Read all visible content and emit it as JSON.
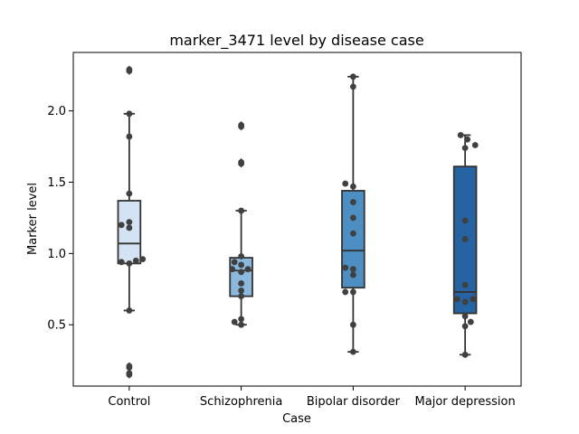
{
  "chart_data": {
    "type": "box",
    "title": "marker_3471 level by disease case",
    "xlabel": "Case",
    "ylabel": "Marker level",
    "ylim": [
      0.07,
      2.41
    ],
    "yticks": [
      0.5,
      1.0,
      1.5,
      2.0
    ],
    "ytick_labels": [
      "0.5",
      "1.0",
      "1.5",
      "2.0"
    ],
    "grid": false,
    "categories": [
      "Control",
      "Schizophrenia",
      "Bipolar disorder",
      "Major depression"
    ],
    "colors": [
      "#d4e3f3",
      "#8ab9dd",
      "#4d8fc3",
      "#2563a3"
    ],
    "box_edge_color": "#333333",
    "point_color": "#404040",
    "boxes": [
      {
        "q1": 0.93,
        "median": 1.07,
        "q3": 1.37,
        "whisker_low": 0.6,
        "whisker_high": 1.98,
        "outliers": [
          2.29,
          2.28,
          0.21,
          0.2,
          0.16,
          0.15
        ]
      },
      {
        "q1": 0.7,
        "median": 0.88,
        "q3": 0.97,
        "whisker_low": 0.5,
        "whisker_high": 1.3,
        "outliers": [
          1.9,
          1.89,
          1.64,
          1.63
        ]
      },
      {
        "q1": 0.76,
        "median": 1.02,
        "q3": 1.44,
        "whisker_low": 0.31,
        "whisker_high": 2.24,
        "outliers": []
      },
      {
        "q1": 0.58,
        "median": 0.73,
        "q3": 1.61,
        "whisker_low": 0.29,
        "whisker_high": 1.83,
        "outliers": []
      }
    ],
    "points": [
      [
        {
          "dx": 0.0,
          "y": 2.29
        },
        {
          "dx": 0.0,
          "y": 2.28
        },
        {
          "dx": 0.0,
          "y": 1.98
        },
        {
          "dx": 0.0,
          "y": 1.82
        },
        {
          "dx": 0.0,
          "y": 1.42
        },
        {
          "dx": -0.07,
          "y": 1.2
        },
        {
          "dx": 0.0,
          "y": 1.22
        },
        {
          "dx": 0.0,
          "y": 1.18
        },
        {
          "dx": 0.12,
          "y": 0.96
        },
        {
          "dx": 0.06,
          "y": 0.95
        },
        {
          "dx": -0.07,
          "y": 0.94
        },
        {
          "dx": 0.0,
          "y": 0.93
        },
        {
          "dx": 0.0,
          "y": 0.6
        },
        {
          "dx": 0.0,
          "y": 0.21
        },
        {
          "dx": 0.0,
          "y": 0.2
        },
        {
          "dx": 0.0,
          "y": 0.16
        },
        {
          "dx": 0.0,
          "y": 0.15
        }
      ],
      [
        {
          "dx": 0.0,
          "y": 1.9
        },
        {
          "dx": 0.0,
          "y": 1.89
        },
        {
          "dx": 0.0,
          "y": 1.64
        },
        {
          "dx": 0.0,
          "y": 1.63
        },
        {
          "dx": 0.0,
          "y": 1.3
        },
        {
          "dx": 0.0,
          "y": 0.98
        },
        {
          "dx": -0.06,
          "y": 0.94
        },
        {
          "dx": 0.0,
          "y": 0.92
        },
        {
          "dx": -0.08,
          "y": 0.89
        },
        {
          "dx": 0.06,
          "y": 0.89
        },
        {
          "dx": 0.0,
          "y": 0.87
        },
        {
          "dx": 0.0,
          "y": 0.79
        },
        {
          "dx": 0.0,
          "y": 0.74
        },
        {
          "dx": 0.0,
          "y": 0.7
        },
        {
          "dx": 0.0,
          "y": 0.54
        },
        {
          "dx": -0.06,
          "y": 0.52
        },
        {
          "dx": 0.0,
          "y": 0.5
        }
      ],
      [
        {
          "dx": 0.0,
          "y": 2.24
        },
        {
          "dx": 0.0,
          "y": 2.17
        },
        {
          "dx": -0.07,
          "y": 1.49
        },
        {
          "dx": 0.0,
          "y": 1.47
        },
        {
          "dx": 0.0,
          "y": 1.36
        },
        {
          "dx": 0.0,
          "y": 1.25
        },
        {
          "dx": 0.0,
          "y": 1.14
        },
        {
          "dx": -0.07,
          "y": 0.9
        },
        {
          "dx": 0.0,
          "y": 0.89
        },
        {
          "dx": 0.0,
          "y": 0.85
        },
        {
          "dx": -0.07,
          "y": 0.73
        },
        {
          "dx": 0.0,
          "y": 0.73
        },
        {
          "dx": 0.0,
          "y": 0.5
        },
        {
          "dx": 0.0,
          "y": 0.31
        }
      ],
      [
        {
          "dx": -0.04,
          "y": 1.83
        },
        {
          "dx": 0.02,
          "y": 1.8
        },
        {
          "dx": 0.09,
          "y": 1.76
        },
        {
          "dx": 0.0,
          "y": 1.74
        },
        {
          "dx": 0.0,
          "y": 1.23
        },
        {
          "dx": 0.0,
          "y": 1.1
        },
        {
          "dx": 0.0,
          "y": 0.78
        },
        {
          "dx": -0.07,
          "y": 0.68
        },
        {
          "dx": 0.07,
          "y": 0.68
        },
        {
          "dx": 0.0,
          "y": 0.66
        },
        {
          "dx": 0.0,
          "y": 0.56
        },
        {
          "dx": 0.05,
          "y": 0.52
        },
        {
          "dx": 0.0,
          "y": 0.49
        },
        {
          "dx": 0.0,
          "y": 0.29
        }
      ]
    ]
  }
}
